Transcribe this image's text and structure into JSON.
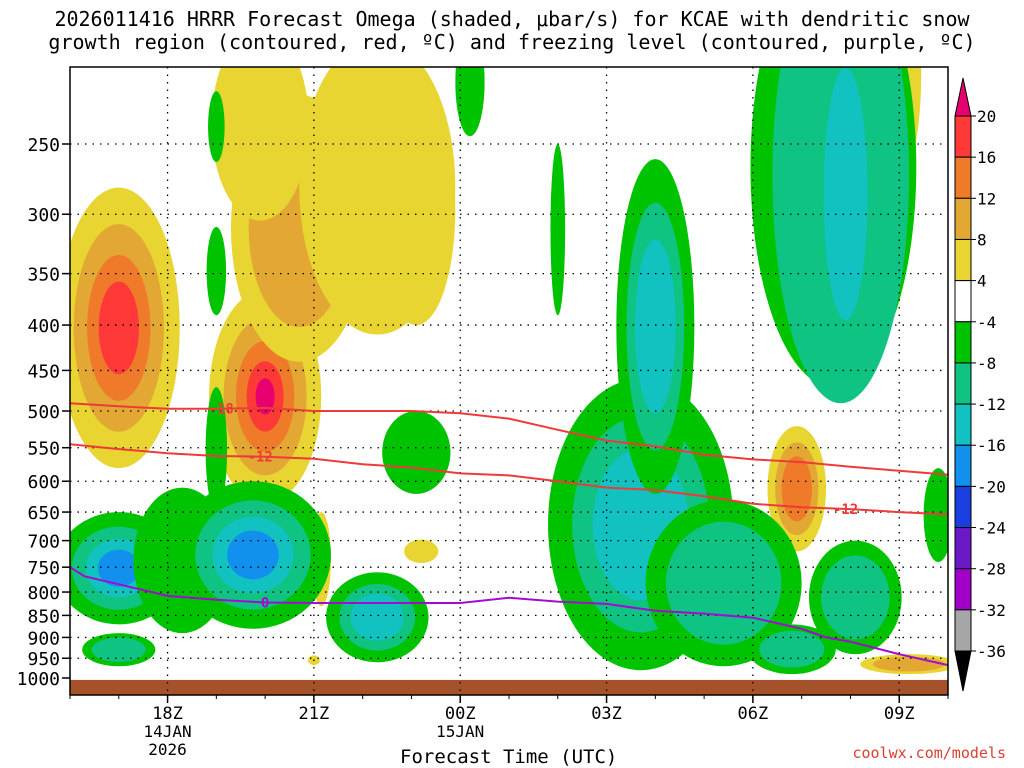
{
  "title_line1": "2026011416 HRRR Forecast Omega (shaded, μbar/s) for KCAE with dendritic snow",
  "title_line2": "growth region (contoured, red, ºC) and freezing level (contoured, purple, ºC)",
  "credit": "coolwx.com/models",
  "chart_data": {
    "type": "heatmap",
    "xlabel": "Forecast Time (UTC)",
    "x_ticks": [
      {
        "hour": 18,
        "label": "18Z",
        "sub1": "14JAN",
        "sub2": "2026"
      },
      {
        "hour": 21,
        "label": "21Z",
        "sub1": "",
        "sub2": ""
      },
      {
        "hour": 24,
        "label": "00Z",
        "sub1": "15JAN",
        "sub2": ""
      },
      {
        "hour": 27,
        "label": "03Z",
        "sub1": "",
        "sub2": ""
      },
      {
        "hour": 30,
        "label": "06Z",
        "sub1": "",
        "sub2": ""
      },
      {
        "hour": 33,
        "label": "09Z",
        "sub1": "",
        "sub2": ""
      }
    ],
    "x_range": [
      16,
      34
    ],
    "y_ticks": [
      250,
      300,
      350,
      400,
      450,
      500,
      550,
      600,
      650,
      700,
      750,
      800,
      850,
      900,
      950,
      1000
    ],
    "y_range": [
      200,
      1015
    ],
    "ylabel": "",
    "grid": true,
    "colorbar": {
      "labels": [
        "20",
        "16",
        "12",
        "8",
        "4",
        "-4",
        "-8",
        "-12",
        "-16",
        "-20",
        "-24",
        "-28",
        "-32",
        "-36"
      ],
      "colors": [
        "#ff3838",
        "#ee7a2a",
        "#e2a833",
        "#e8d532",
        "#ffffff",
        "#00c300",
        "#0fc382",
        "#11c2c0",
        "#1190ee",
        "#1a3fe0",
        "#6a18c8",
        "#a000c8",
        "#a6a6a6"
      ],
      "top_arrow_color": "#e8006e",
      "bottom_arrow_color": "#000000"
    },
    "omega_features": [
      {
        "type": "blob",
        "cx": 17.0,
        "cy": 430,
        "rx": 1.25,
        "ry": 150,
        "levels": [
          4,
          8,
          12,
          16
        ]
      },
      {
        "type": "blob",
        "cx": 20.0,
        "cy": 500,
        "rx": 1.15,
        "ry": 135,
        "levels": [
          4,
          8,
          12,
          16,
          20
        ]
      },
      {
        "type": "blob",
        "cx": 20.7,
        "cy": 330,
        "rx": 1.4,
        "ry": 110,
        "levels": [
          4,
          8
        ]
      },
      {
        "type": "blob",
        "cx": 19.9,
        "cy": 245,
        "rx": 1.0,
        "ry": 60,
        "levels": [
          4
        ]
      },
      {
        "type": "blob",
        "cx": 22.3,
        "cy": 300,
        "rx": 1.6,
        "ry": 110,
        "levels": [
          4
        ]
      },
      {
        "type": "blob",
        "cx": 23.1,
        "cy": 310,
        "rx": 0.8,
        "ry": 90,
        "levels": [
          4
        ]
      },
      {
        "type": "blob",
        "cx": 33.1,
        "cy": 215,
        "rx": 0.35,
        "ry": 50,
        "levels": [
          4
        ]
      },
      {
        "type": "blob",
        "cx": 33.0,
        "cy": 345,
        "rx": 0.1,
        "ry": 20,
        "levels": [
          4
        ]
      },
      {
        "type": "blob",
        "cx": 30.9,
        "cy": 620,
        "rx": 0.6,
        "ry": 100,
        "levels": [
          4,
          8,
          12
        ]
      },
      {
        "type": "blob",
        "cx": 21.15,
        "cy": 740,
        "rx": 0.2,
        "ry": 90,
        "levels": [
          4
        ]
      },
      {
        "type": "blob",
        "cx": 23.2,
        "cy": 720,
        "rx": 0.35,
        "ry": 22,
        "levels": [
          4
        ]
      },
      {
        "type": "blob",
        "cx": 21.0,
        "cy": 955,
        "rx": 0.12,
        "ry": 12,
        "levels": [
          4
        ]
      },
      {
        "type": "blob",
        "cx": 33.2,
        "cy": 965,
        "rx": 1.0,
        "ry": 25,
        "levels": [
          4,
          8
        ]
      },
      {
        "type": "blob",
        "cx": 17.0,
        "cy": 760,
        "rx": 1.3,
        "ry": 110,
        "levels": [
          -4,
          -8,
          -12,
          -16
        ]
      },
      {
        "type": "blob",
        "cx": 18.3,
        "cy": 750,
        "rx": 1.0,
        "ry": 140,
        "levels": [
          -4
        ]
      },
      {
        "type": "blob",
        "cx": 19.75,
        "cy": 740,
        "rx": 1.6,
        "ry": 140,
        "levels": [
          -4,
          -8,
          -12,
          -16
        ]
      },
      {
        "type": "blob",
        "cx": 19.0,
        "cy": 560,
        "rx": 0.22,
        "ry": 90,
        "levels": [
          -4
        ]
      },
      {
        "type": "blob",
        "cx": 17.0,
        "cy": 930,
        "rx": 0.75,
        "ry": 40,
        "levels": [
          -4,
          -8
        ]
      },
      {
        "type": "blob",
        "cx": 22.3,
        "cy": 860,
        "rx": 1.05,
        "ry": 100,
        "levels": [
          -4,
          -8,
          -12
        ]
      },
      {
        "type": "blob",
        "cx": 23.1,
        "cy": 560,
        "rx": 0.7,
        "ry": 60,
        "levels": [
          -4
        ]
      },
      {
        "type": "blob",
        "cx": 19.0,
        "cy": 240,
        "rx": 0.17,
        "ry": 22,
        "levels": [
          -4
        ]
      },
      {
        "type": "blob",
        "cx": 19.0,
        "cy": 350,
        "rx": 0.2,
        "ry": 40,
        "levels": [
          -4
        ]
      },
      {
        "type": "blob",
        "cx": 24.2,
        "cy": 215,
        "rx": 0.3,
        "ry": 30,
        "levels": [
          -4
        ]
      },
      {
        "type": "blob",
        "cx": 26.0,
        "cy": 320,
        "rx": 0.15,
        "ry": 70,
        "levels": [
          -4
        ]
      },
      {
        "type": "blob",
        "cx": 27.7,
        "cy": 720,
        "rx": 1.9,
        "ry": 260,
        "levels": [
          -4,
          -8,
          -12
        ]
      },
      {
        "type": "blob",
        "cx": 28.0,
        "cy": 440,
        "rx": 0.8,
        "ry": 180,
        "levels": [
          -4,
          -8,
          -12
        ]
      },
      {
        "type": "blob",
        "cx": 29.4,
        "cy": 800,
        "rx": 1.6,
        "ry": 170,
        "levels": [
          -4,
          -8
        ]
      },
      {
        "type": "blob",
        "cx": 32.1,
        "cy": 820,
        "rx": 0.95,
        "ry": 120,
        "levels": [
          -4,
          -8
        ]
      },
      {
        "type": "blob",
        "cx": 30.8,
        "cy": 930,
        "rx": 0.9,
        "ry": 60,
        "levels": [
          -4,
          -8
        ]
      },
      {
        "type": "blob",
        "cx": 31.65,
        "cy": 300,
        "rx": 1.7,
        "ry": 170,
        "levels": [
          -4
        ]
      },
      {
        "type": "blob",
        "cx": 31.8,
        "cy": 310,
        "rx": 1.4,
        "ry": 180,
        "levels": [
          -8
        ]
      },
      {
        "type": "blob",
        "cx": 31.9,
        "cy": 300,
        "rx": 0.45,
        "ry": 95,
        "levels": [
          -12
        ]
      },
      {
        "type": "blob",
        "cx": 33.8,
        "cy": 660,
        "rx": 0.3,
        "ry": 80,
        "levels": [
          -4
        ]
      }
    ],
    "contours": [
      {
        "name": "-18",
        "color": "#f03a3a",
        "label_at": 19.1,
        "points": [
          [
            16.0,
            490
          ],
          [
            17.0,
            494
          ],
          [
            18.0,
            497
          ],
          [
            19.0,
            497
          ],
          [
            20.0,
            496
          ],
          [
            21.0,
            500
          ],
          [
            22.0,
            500
          ],
          [
            23.0,
            500
          ],
          [
            24.0,
            503
          ],
          [
            25.0,
            510
          ],
          [
            26.0,
            525
          ],
          [
            27.0,
            540
          ],
          [
            28.0,
            548
          ],
          [
            29.0,
            560
          ],
          [
            30.0,
            567
          ],
          [
            31.0,
            571
          ],
          [
            32.0,
            578
          ],
          [
            33.0,
            584
          ],
          [
            34.0,
            590
          ]
        ]
      },
      {
        "name": "-12",
        "color": "#f03a3a",
        "label_at": 19.9,
        "label2_at": 31.9,
        "points": [
          [
            16.0,
            545
          ],
          [
            17.0,
            552
          ],
          [
            18.0,
            558
          ],
          [
            19.0,
            562
          ],
          [
            20.0,
            563
          ],
          [
            21.0,
            566
          ],
          [
            22.0,
            574
          ],
          [
            23.0,
            579
          ],
          [
            24.0,
            588
          ],
          [
            25.0,
            591
          ],
          [
            26.0,
            600
          ],
          [
            27.0,
            610
          ],
          [
            28.0,
            614
          ],
          [
            29.0,
            624
          ],
          [
            30.0,
            636
          ],
          [
            31.0,
            642
          ],
          [
            32.0,
            645
          ],
          [
            33.0,
            650
          ],
          [
            34.0,
            654
          ]
        ]
      },
      {
        "name": "0",
        "color": "#a30bd3",
        "label_at": 20.0,
        "points": [
          [
            16.0,
            750
          ],
          [
            16.3,
            768
          ],
          [
            17.0,
            784
          ],
          [
            18.0,
            808
          ],
          [
            19.0,
            816
          ],
          [
            20.0,
            822
          ],
          [
            21.0,
            823
          ],
          [
            22.0,
            823
          ],
          [
            23.0,
            823
          ],
          [
            24.0,
            823
          ],
          [
            25.0,
            812
          ],
          [
            26.0,
            820
          ],
          [
            27.0,
            825
          ],
          [
            28.0,
            840
          ],
          [
            29.0,
            846
          ],
          [
            30.0,
            855
          ],
          [
            31.0,
            880
          ],
          [
            31.5,
            900
          ],
          [
            32.0,
            910
          ],
          [
            33.0,
            940
          ],
          [
            34.0,
            967
          ]
        ]
      }
    ],
    "ground_color": "#a5522a"
  }
}
